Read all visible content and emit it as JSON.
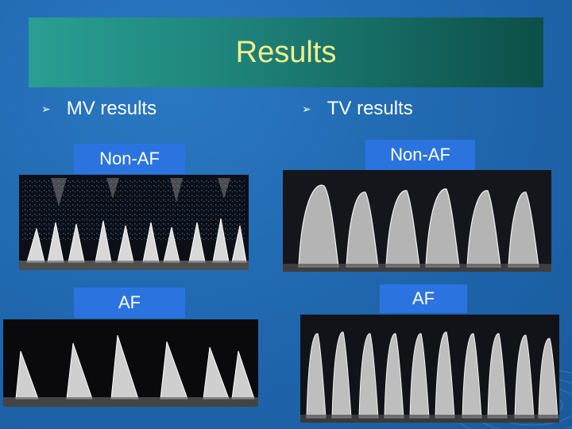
{
  "slide": {
    "title": "Results",
    "columns": [
      {
        "heading": "MV results",
        "labels": [
          "Non-AF",
          "AF"
        ]
      },
      {
        "heading": "TV results",
        "labels": [
          "Non-AF",
          "AF"
        ]
      }
    ]
  },
  "colors": {
    "title_text": "#f2f08a",
    "label_box": "#2b74e0",
    "background": "#1f66ad"
  },
  "icons": {
    "bullet": "arrow-bullet-icon"
  }
}
